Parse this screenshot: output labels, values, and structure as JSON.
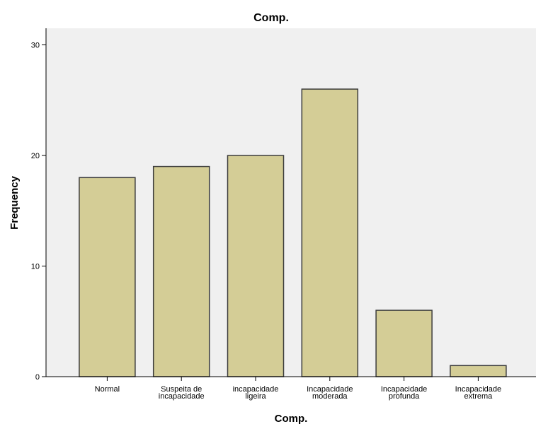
{
  "chart_data": {
    "type": "bar",
    "title": "Comp.",
    "xlabel": "Comp.",
    "ylabel": "Frequency",
    "categories": [
      [
        "Normal"
      ],
      [
        "Suspeita de",
        "incapacidade"
      ],
      [
        "incapacidade",
        "ligeira"
      ],
      [
        "Incapacidade",
        "moderada"
      ],
      [
        "Incapacidade",
        "profunda"
      ],
      [
        "Incapacidade",
        "extrema"
      ]
    ],
    "values": [
      18,
      19,
      20,
      26,
      6,
      1
    ],
    "ylim": [
      0,
      31.5
    ],
    "yticks": [
      0,
      10,
      20,
      30
    ],
    "grid": false,
    "legend": "none",
    "colors": {
      "plot_background": "#f0f0f0",
      "bar_fill": "#d4cd96",
      "bar_stroke": "#3c3c3c",
      "axis": "#000000"
    }
  }
}
